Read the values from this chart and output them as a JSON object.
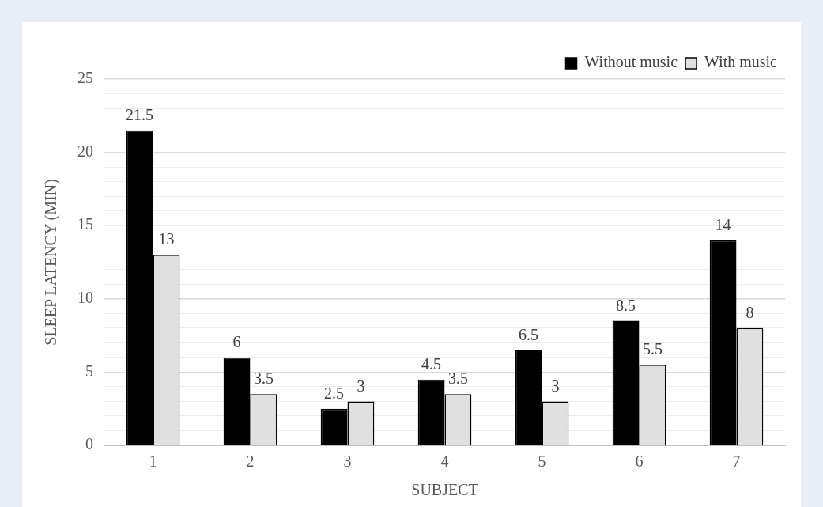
{
  "chart_data": {
    "type": "bar",
    "xlabel": "SUBJECT",
    "ylabel": "SLEEP LATENCY (MIN)",
    "categories": [
      "1",
      "2",
      "3",
      "4",
      "5",
      "6",
      "7"
    ],
    "series": [
      {
        "name": "Without music",
        "color": "#000000",
        "values": [
          21.5,
          6,
          2.5,
          4.5,
          6.5,
          8.5,
          14
        ]
      },
      {
        "name": "With music",
        "color": "#e0e0e0",
        "values": [
          13,
          3.5,
          3,
          3.5,
          3,
          5.5,
          8
        ]
      }
    ],
    "ylim": [
      0,
      25
    ],
    "yticks": [
      0,
      {
        "value": 1,
        "label": null
      },
      {
        "value": 2,
        "label": null
      },
      {
        "value": 3,
        "label": null
      },
      {
        "value": 4,
        "label": null
      },
      5,
      {
        "value": 6,
        "label": null
      },
      {
        "value": 7,
        "label": null
      },
      {
        "value": 8,
        "label": null
      },
      {
        "value": 9,
        "label": null
      },
      10,
      {
        "value": 11,
        "label": null
      },
      {
        "value": 12,
        "label": null
      },
      {
        "value": 13,
        "label": null
      },
      {
        "value": 14,
        "label": null
      },
      15,
      {
        "value": 16,
        "label": null
      },
      {
        "value": 17,
        "label": null
      },
      {
        "value": 18,
        "label": null
      },
      {
        "value": 19,
        "label": null
      },
      20,
      {
        "value": 21,
        "label": null
      },
      {
        "value": 22,
        "label": null
      },
      {
        "value": 23,
        "label": null
      },
      {
        "value": 24,
        "label": null
      },
      25
    ],
    "grid": "y",
    "legend": "top right",
    "data_labels": true
  }
}
